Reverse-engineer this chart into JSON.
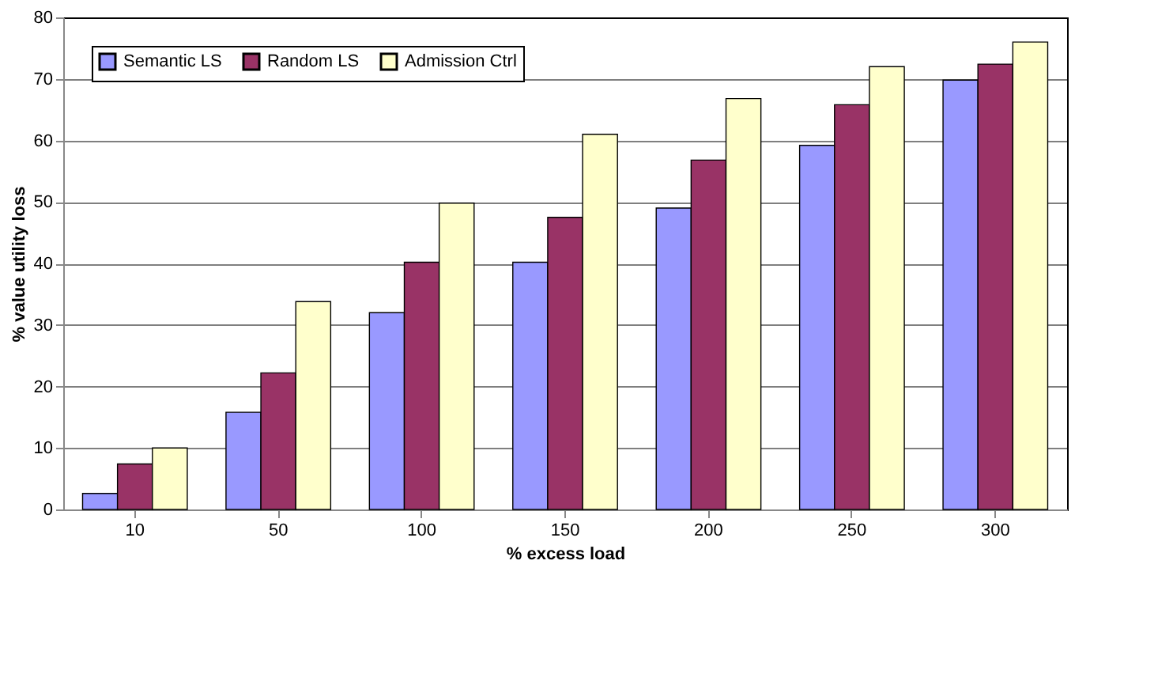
{
  "chart_data": {
    "type": "bar",
    "xlabel": "%  excess load",
    "ylabel": "% value utility loss",
    "categories": [
      "10",
      "50",
      "100",
      "150",
      "200",
      "250",
      "300"
    ],
    "series": [
      {
        "name": "Semantic LS",
        "color": "#9999ff",
        "values": [
          2.6,
          15.8,
          32,
          40.2,
          49,
          59.2,
          69.8
        ]
      },
      {
        "name": "Random LS",
        "color": "#993366",
        "values": [
          7.4,
          22.2,
          40.2,
          47.5,
          56.8,
          65.8,
          72.4
        ]
      },
      {
        "name": "Admission Ctrl",
        "color": "#ffffcc",
        "values": [
          10,
          33.8,
          49.8,
          61,
          66.8,
          72,
          76
        ]
      }
    ],
    "ylim": [
      0,
      80
    ],
    "yticks": [
      0,
      10,
      20,
      30,
      40,
      50,
      60,
      70,
      80
    ],
    "grid": "y",
    "legend": "top left"
  }
}
